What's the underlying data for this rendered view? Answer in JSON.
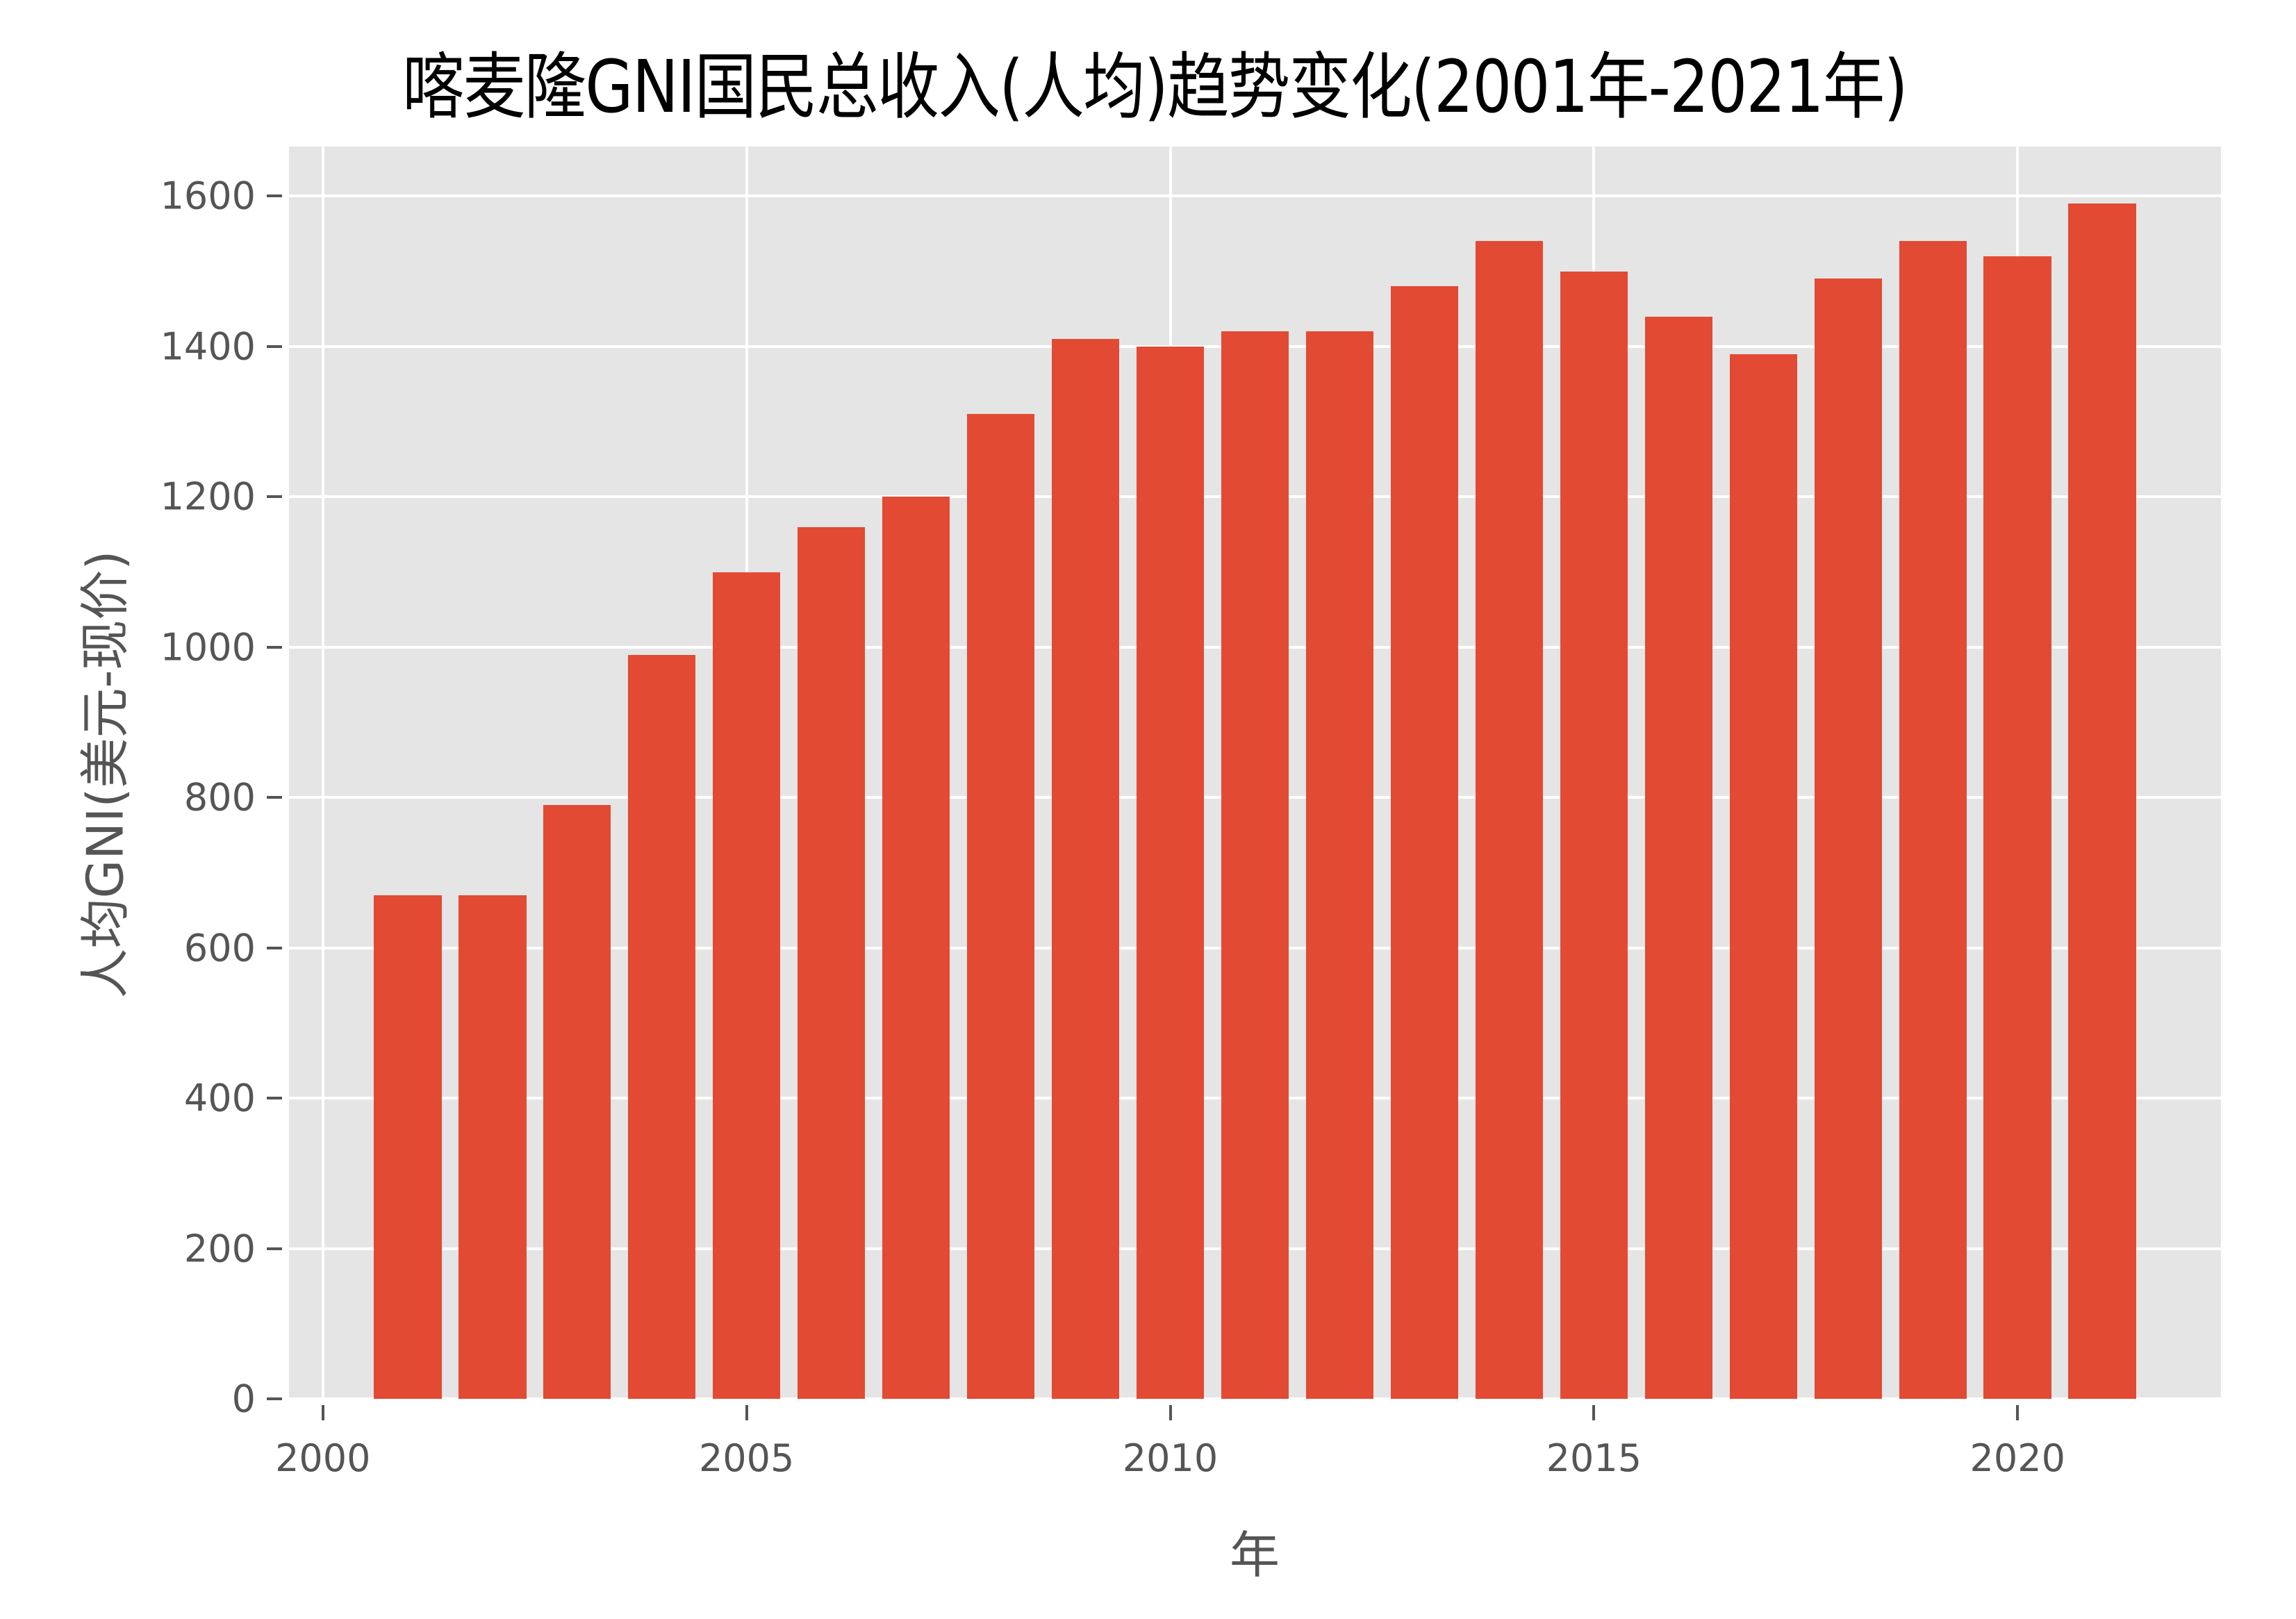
{
  "chart_data": {
    "type": "bar",
    "title": "喀麦隆GNI国民总收入(人均)趋势变化(2001年-2021年)",
    "xlabel": "年",
    "ylabel": "人均GNI(美元-现价)",
    "categories": [
      2001,
      2002,
      2003,
      2004,
      2005,
      2006,
      2007,
      2008,
      2009,
      2010,
      2011,
      2012,
      2013,
      2014,
      2015,
      2016,
      2017,
      2018,
      2019,
      2020,
      2021
    ],
    "values": [
      670,
      670,
      790,
      990,
      1100,
      1160,
      1200,
      1310,
      1410,
      1400,
      1420,
      1420,
      1480,
      1540,
      1500,
      1440,
      1390,
      1490,
      1540,
      1520,
      1590
    ],
    "xlim": [
      1999.6,
      2022.4
    ],
    "ylim": [
      0,
      1666
    ],
    "xticks": [
      "2000",
      "2005",
      "2010",
      "2015",
      "2020"
    ],
    "yticks": [
      "0",
      "200",
      "400",
      "600",
      "800",
      "1000",
      "1200",
      "1400",
      "1600"
    ],
    "grid": true,
    "bar_color": "#e24a33",
    "background_color": "#e5e5e5",
    "legend": null
  }
}
